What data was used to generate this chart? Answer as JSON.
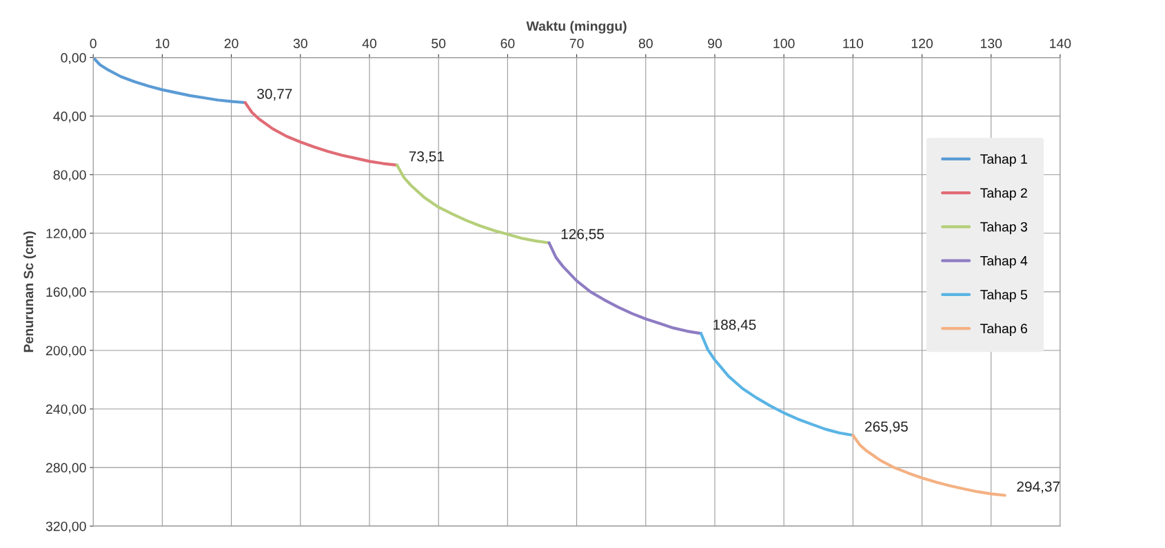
{
  "chart_data": {
    "type": "line",
    "xlabel": "Waktu (minggu)",
    "ylabel": "Penurunan Sc (cm)",
    "xlim": [
      0,
      140
    ],
    "xticks": [
      0,
      10,
      20,
      30,
      40,
      50,
      60,
      70,
      80,
      90,
      100,
      110,
      120,
      130,
      140
    ],
    "ylim": [
      320,
      0
    ],
    "yticks": [
      {
        "value": 0,
        "label": "0,00"
      },
      {
        "value": 40,
        "label": "40,00"
      },
      {
        "value": 80,
        "label": "80,00"
      },
      {
        "value": 120,
        "label": "120,00"
      },
      {
        "value": 160,
        "label": "160,00"
      },
      {
        "value": 200,
        "label": "200,00"
      },
      {
        "value": 240,
        "label": "240,00"
      },
      {
        "value": 280,
        "label": "280,00"
      },
      {
        "value": 320,
        "label": "320,00"
      }
    ],
    "grid": true,
    "legend": "right",
    "marker": "none",
    "line_style": "solid",
    "series": [
      {
        "name": "Tahap 1",
        "color": "#5b9bd5",
        "x": [
          0,
          1,
          2,
          4,
          6,
          8,
          10,
          12,
          14,
          16,
          18,
          20,
          22
        ],
        "values": [
          0,
          5,
          8,
          13,
          16.5,
          19.5,
          22,
          24,
          26,
          27.5,
          29,
          30,
          30.77
        ]
      },
      {
        "name": "Tahap 2",
        "color": "#e06c75",
        "x": [
          22,
          23,
          24,
          26,
          28,
          30,
          32,
          34,
          36,
          38,
          40,
          42,
          44
        ],
        "values": [
          30.77,
          37.6,
          41.9,
          48.7,
          53.8,
          57.7,
          61.1,
          64.1,
          66.7,
          68.8,
          70.9,
          72.4,
          73.51
        ]
      },
      {
        "name": "Tahap 3",
        "color": "#b5cf7a",
        "x": [
          44,
          45,
          46,
          48,
          50,
          52,
          54,
          56,
          58,
          60,
          62,
          64,
          66
        ],
        "values": [
          73.51,
          82.0,
          87.3,
          95.8,
          102.2,
          106.9,
          111.2,
          114.9,
          118.1,
          120.7,
          123.4,
          125.2,
          126.55
        ]
      },
      {
        "name": "Tahap 4",
        "color": "#8e7cc3",
        "x": [
          66,
          67,
          68,
          70,
          72,
          74,
          76,
          78,
          80,
          82,
          84,
          86,
          88
        ],
        "values": [
          126.55,
          136.5,
          142.6,
          152.5,
          160.0,
          165.5,
          170.5,
          174.8,
          178.5,
          181.6,
          184.7,
          186.9,
          188.45
        ]
      },
      {
        "name": "Tahap 5",
        "color": "#5ab4e5",
        "x": [
          88,
          89,
          90,
          92,
          94,
          96,
          98,
          100,
          102,
          104,
          106,
          108,
          110
        ],
        "values": [
          188.45,
          199.6,
          206.5,
          217.7,
          226.0,
          232.3,
          237.8,
          242.7,
          246.9,
          250.4,
          253.8,
          256.3,
          258.0
        ]
      },
      {
        "name": "Tahap 6",
        "color": "#f4b183",
        "x": [
          110,
          111,
          112,
          114,
          116,
          118,
          120,
          122,
          124,
          126,
          128,
          130,
          132
        ],
        "values": [
          258.0,
          264.6,
          268.7,
          275.2,
          280.1,
          283.8,
          287.1,
          290.0,
          292.4,
          294.5,
          296.5,
          298.0,
          299.0
        ]
      }
    ],
    "annotations": [
      {
        "text": "30,77",
        "x": 22,
        "y": 30.77
      },
      {
        "text": "73,51",
        "x": 44,
        "y": 73.51
      },
      {
        "text": "126,55",
        "x": 66,
        "y": 126.55
      },
      {
        "text": "188,45",
        "x": 88,
        "y": 188.45
      },
      {
        "text": "265,95",
        "x": 110,
        "y": 258.0
      },
      {
        "text": "294,37",
        "x": 132,
        "y": 299.0
      }
    ]
  }
}
